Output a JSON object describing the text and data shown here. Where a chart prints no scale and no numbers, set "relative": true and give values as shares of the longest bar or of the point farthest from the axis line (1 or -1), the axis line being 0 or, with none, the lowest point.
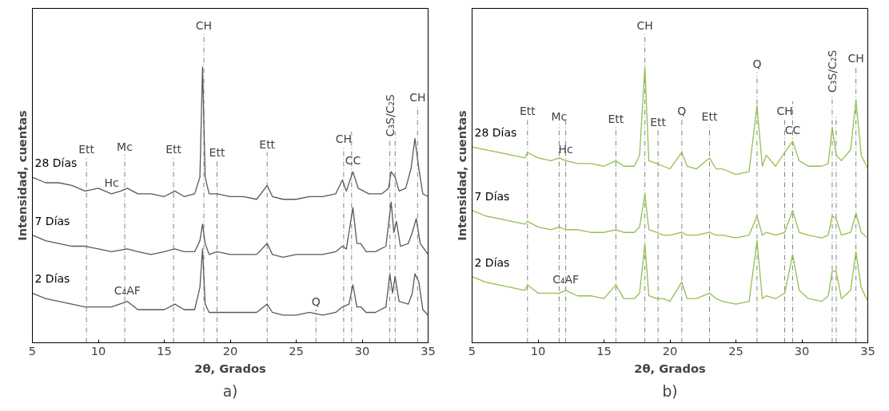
{
  "chart_data": [
    {
      "type": "line",
      "relative": true,
      "xlabel": "2θ, Grados",
      "ylabel": "Intensidad, cuentas",
      "xlim": [
        5,
        35
      ],
      "xticks": [
        5,
        10,
        15,
        20,
        25,
        30,
        35
      ],
      "grid": false,
      "x": [
        5,
        6,
        7,
        8,
        9,
        10,
        11,
        11.7,
        12.2,
        13,
        14,
        15,
        15.8,
        16.5,
        17.3,
        17.7,
        17.9,
        18.1,
        18.4,
        19,
        20,
        21,
        22,
        22.8,
        23.2,
        24,
        25,
        26,
        27,
        28,
        28.5,
        28.8,
        29.3,
        29.7,
        30.5,
        31.5,
        32,
        32.2,
        32.5,
        32.8,
        33.3,
        33.7,
        34,
        34.3,
        34.6,
        35
      ],
      "series": [
        {
          "name": "28 Días",
          "color": "#595959",
          "values": [
            0.6,
            0.58,
            0.58,
            0.57,
            0.55,
            0.56,
            0.54,
            0.55,
            0.56,
            0.54,
            0.54,
            0.53,
            0.55,
            0.53,
            0.54,
            0.6,
            1.0,
            0.6,
            0.54,
            0.54,
            0.53,
            0.53,
            0.52,
            0.57,
            0.53,
            0.52,
            0.52,
            0.53,
            0.53,
            0.54,
            0.59,
            0.55,
            0.62,
            0.56,
            0.54,
            0.54,
            0.56,
            0.62,
            0.6,
            0.55,
            0.56,
            0.63,
            0.74,
            0.63,
            0.54,
            0.53
          ]
        },
        {
          "name": "7 Días",
          "color": "#595959",
          "x": [
            5,
            6,
            7,
            8,
            9,
            10,
            11,
            12.2,
            13,
            14,
            15,
            15.8,
            16.5,
            17.3,
            17.7,
            17.9,
            18.1,
            18.4,
            19,
            20,
            21,
            22,
            22.8,
            23.2,
            24,
            25,
            26,
            27,
            28,
            28.5,
            28.8,
            29.3,
            29.6,
            29.9,
            30.3,
            31,
            31.8,
            32.2,
            32.4,
            32.6,
            32.9,
            33.5,
            33.8,
            34.1,
            34.4,
            35
          ],
          "values": [
            0.39,
            0.37,
            0.36,
            0.35,
            0.35,
            0.34,
            0.33,
            0.34,
            0.33,
            0.32,
            0.33,
            0.34,
            0.33,
            0.33,
            0.37,
            0.43,
            0.36,
            0.32,
            0.33,
            0.32,
            0.32,
            0.32,
            0.36,
            0.32,
            0.31,
            0.32,
            0.32,
            0.32,
            0.33,
            0.35,
            0.34,
            0.49,
            0.36,
            0.36,
            0.33,
            0.33,
            0.35,
            0.51,
            0.4,
            0.44,
            0.35,
            0.36,
            0.4,
            0.45,
            0.36,
            0.32
          ]
        },
        {
          "name": "2 Días",
          "color": "#595959",
          "x": [
            5,
            6,
            7,
            8,
            9,
            10,
            11,
            12.2,
            13,
            14,
            15,
            15.8,
            16.5,
            17.3,
            17.7,
            17.9,
            18.1,
            18.4,
            19,
            20,
            21,
            22,
            22.8,
            23.2,
            24,
            25,
            26,
            27,
            28,
            28.5,
            29,
            29.3,
            29.6,
            29.9,
            30.3,
            31,
            31.8,
            32.1,
            32.3,
            32.5,
            32.8,
            33.5,
            33.8,
            34,
            34.3,
            34.6,
            35
          ],
          "values": [
            0.18,
            0.16,
            0.15,
            0.14,
            0.13,
            0.13,
            0.13,
            0.15,
            0.12,
            0.12,
            0.12,
            0.14,
            0.12,
            0.12,
            0.2,
            0.34,
            0.14,
            0.11,
            0.11,
            0.11,
            0.11,
            0.11,
            0.14,
            0.11,
            0.1,
            0.1,
            0.11,
            0.1,
            0.11,
            0.13,
            0.14,
            0.21,
            0.13,
            0.13,
            0.11,
            0.11,
            0.13,
            0.25,
            0.18,
            0.24,
            0.15,
            0.14,
            0.18,
            0.25,
            0.22,
            0.12,
            0.1
          ]
        }
      ],
      "ref_lines": [
        {
          "axis": "x",
          "value": 9.1,
          "label": "Ett",
          "color": "#808080",
          "line_style": "dashdot"
        },
        {
          "axis": "x",
          "value": 12.0,
          "label": "Mc",
          "color": "#808080",
          "line_style": "dashdot"
        },
        {
          "axis": "x",
          "value": 15.7,
          "label": "Ett",
          "color": "#808080",
          "line_style": "dashdot"
        },
        {
          "axis": "x",
          "value": 18.0,
          "label": "CH",
          "color": "#808080",
          "line_style": "dashdot"
        },
        {
          "axis": "x",
          "value": 19.0,
          "label": "Ett",
          "color": "#808080",
          "line_style": "dashdot"
        },
        {
          "axis": "x",
          "value": 22.8,
          "label": "Ett",
          "color": "#808080",
          "line_style": "dashdot"
        },
        {
          "axis": "x",
          "value": 26.5,
          "label": "Q",
          "color": "#808080",
          "line_style": "dashdot"
        },
        {
          "axis": "x",
          "value": 28.6,
          "label": "CH",
          "color": "#808080",
          "line_style": "dashdot"
        },
        {
          "axis": "x",
          "value": 29.2,
          "color": "#808080",
          "line_style": "dashdot"
        },
        {
          "axis": "x",
          "value": 32.1,
          "label": "C₃S/C₂S",
          "color": "#808080",
          "line_style": "dashdot"
        },
        {
          "axis": "x",
          "value": 32.5,
          "color": "#808080",
          "line_style": "dashdot"
        },
        {
          "axis": "x",
          "value": 34.2,
          "label": "CH",
          "color": "#808080",
          "line_style": "dashdot"
        }
      ],
      "annotations": [
        {
          "text": "Hc",
          "x": 11,
          "y": 0.54
        },
        {
          "text": "C₄AF",
          "x": 12.2,
          "y": 0.15
        },
        {
          "text": "CC",
          "x": 29.3,
          "y": 0.62
        },
        "a)"
      ]
    },
    {
      "type": "line",
      "relative": true,
      "xlabel": "2θ, Grados",
      "ylabel": "Intensidad, cuentas",
      "xlim": [
        5,
        35
      ],
      "xticks": [
        5,
        10,
        15,
        20,
        25,
        30,
        35
      ],
      "grid": false,
      "x": [
        5,
        6,
        7,
        8,
        9,
        9.2,
        10,
        11,
        11.6,
        12.1,
        13,
        14,
        15,
        15.9,
        16.5,
        17.3,
        17.7,
        18.1,
        18.4,
        19,
        19.5,
        20,
        20.9,
        21.3,
        22,
        23.0,
        23.5,
        24,
        25,
        26,
        26.6,
        27,
        27.3,
        28,
        28.7,
        29.3,
        29.8,
        30.5,
        31.5,
        32,
        32.3,
        32.6,
        33,
        33.7,
        34.1,
        34.5,
        35
      ],
      "series": [
        {
          "name": "28 Días",
          "color": "#92c050",
          "values": [
            0.71,
            0.7,
            0.69,
            0.68,
            0.67,
            0.69,
            0.67,
            0.66,
            0.67,
            0.66,
            0.65,
            0.65,
            0.64,
            0.66,
            0.64,
            0.64,
            0.68,
            1.0,
            0.66,
            0.65,
            0.64,
            0.63,
            0.69,
            0.64,
            0.63,
            0.67,
            0.63,
            0.63,
            0.61,
            0.62,
            0.86,
            0.64,
            0.68,
            0.64,
            0.69,
            0.73,
            0.66,
            0.64,
            0.64,
            0.65,
            0.78,
            0.68,
            0.66,
            0.7,
            0.88,
            0.68,
            0.63
          ]
        },
        {
          "name": "7 Días",
          "color": "#92c050",
          "values": [
            0.48,
            0.46,
            0.45,
            0.44,
            0.43,
            0.44,
            0.42,
            0.41,
            0.42,
            0.41,
            0.41,
            0.4,
            0.4,
            0.41,
            0.4,
            0.4,
            0.42,
            0.54,
            0.41,
            0.4,
            0.39,
            0.39,
            0.4,
            0.39,
            0.39,
            0.4,
            0.39,
            0.39,
            0.38,
            0.39,
            0.46,
            0.39,
            0.4,
            0.39,
            0.4,
            0.48,
            0.4,
            0.39,
            0.38,
            0.39,
            0.46,
            0.45,
            0.39,
            0.4,
            0.47,
            0.4,
            0.38
          ]
        },
        {
          "name": "2 Días",
          "color": "#92c050",
          "values": [
            0.24,
            0.22,
            0.21,
            0.2,
            0.19,
            0.21,
            0.18,
            0.18,
            0.18,
            0.19,
            0.17,
            0.17,
            0.16,
            0.21,
            0.16,
            0.16,
            0.18,
            0.36,
            0.17,
            0.16,
            0.16,
            0.15,
            0.22,
            0.16,
            0.16,
            0.18,
            0.16,
            0.15,
            0.14,
            0.15,
            0.37,
            0.16,
            0.17,
            0.16,
            0.18,
            0.32,
            0.19,
            0.16,
            0.15,
            0.17,
            0.26,
            0.26,
            0.16,
            0.19,
            0.33,
            0.2,
            0.15
          ]
        }
      ],
      "ref_lines": [
        {
          "axis": "x",
          "value": 9.2,
          "label": "Ett",
          "color": "#808080",
          "line_style": "dashdot"
        },
        {
          "axis": "x",
          "value": 11.6,
          "label": "Mc",
          "color": "#808080",
          "line_style": "dashdot"
        },
        {
          "axis": "x",
          "value": 12.1,
          "color": "#808080",
          "line_style": "dashdot"
        },
        {
          "axis": "x",
          "value": 15.9,
          "label": "Ett",
          "color": "#808080",
          "line_style": "dashdot"
        },
        {
          "axis": "x",
          "value": 18.1,
          "label": "CH",
          "color": "#808080",
          "line_style": "dashdot"
        },
        {
          "axis": "x",
          "value": 19.1,
          "label": "Ett",
          "color": "#808080",
          "line_style": "dashdot"
        },
        {
          "axis": "x",
          "value": 20.9,
          "label": "Q",
          "color": "#808080",
          "line_style": "dashdot"
        },
        {
          "axis": "x",
          "value": 23.0,
          "label": "Ett",
          "color": "#808080",
          "line_style": "dashdot"
        },
        {
          "axis": "x",
          "value": 26.6,
          "label": "Q",
          "color": "#808080",
          "line_style": "dashdot"
        },
        {
          "axis": "x",
          "value": 28.7,
          "label": "CH",
          "color": "#808080",
          "line_style": "dashdot"
        },
        {
          "axis": "x",
          "value": 29.3,
          "color": "#808080",
          "line_style": "dashdot"
        },
        {
          "axis": "x",
          "value": 32.3,
          "label": "C₃S/C₂S",
          "color": "#808080",
          "line_style": "dashdot"
        },
        {
          "axis": "x",
          "value": 32.6,
          "color": "#808080",
          "line_style": "dashdot"
        },
        {
          "axis": "x",
          "value": 34.1,
          "label": "CH",
          "color": "#808080",
          "line_style": "dashdot"
        }
      ],
      "annotations": [
        {
          "text": "Hc",
          "x": 12.1,
          "y": 0.66
        },
        {
          "text": "C₄AF",
          "x": 12.1,
          "y": 0.19
        },
        {
          "text": "CC",
          "x": 29.3,
          "y": 0.73
        },
        "b)"
      ]
    }
  ]
}
